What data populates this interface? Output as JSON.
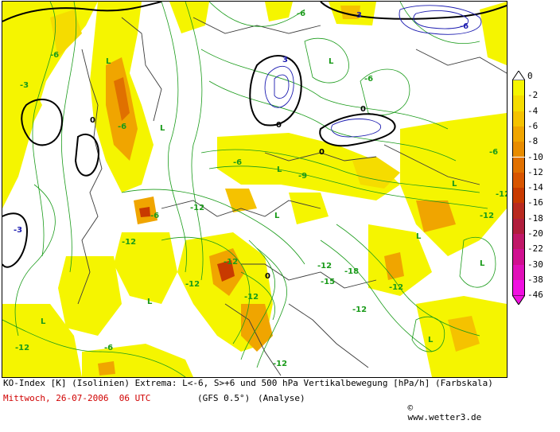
{
  "colors": {
    "contour_positive": "#1a9b1a",
    "contour_zero": "#000000",
    "contour_negative": "#1b1bb0",
    "coast": "#3a3a3a",
    "date_text": "#d00000"
  },
  "caption": {
    "line1": "KO-Index [K] (Isolinien) Extrema: L<-6, S>+6 und 500 hPa Vertikalbewegung [hPa/h] (Farbskala)",
    "date": "Mittwoch, 26-07-2006  06 UTC",
    "model": "(GFS 0.5°)",
    "run": "(Analyse)",
    "copyright": "www.wetter3.de"
  },
  "legend": {
    "top_label": "0",
    "levels": [
      {
        "label": "-2",
        "color": "#f5f500"
      },
      {
        "label": "-4",
        "color": "#f5dc00"
      },
      {
        "label": "-6",
        "color": "#f5c200"
      },
      {
        "label": "-8",
        "color": "#f0a500"
      },
      {
        "label": "-10",
        "color": "#e88c00"
      },
      {
        "label": "-12",
        "color": "#e07000"
      },
      {
        "label": "-14",
        "color": "#d85500"
      },
      {
        "label": "-16",
        "color": "#c83a00"
      },
      {
        "label": "-18",
        "color": "#b82a20"
      },
      {
        "label": "-20",
        "color": "#b01e3c"
      },
      {
        "label": "-22",
        "color": "#c01868"
      },
      {
        "label": "-30",
        "color": "#d01090"
      },
      {
        "label": "-38",
        "color": "#e010b8"
      },
      {
        "label": "-46",
        "color": "#f010e0"
      }
    ]
  },
  "map_labels": [
    {
      "text": "L",
      "color": "#1a9b1a"
    },
    {
      "text": "-6",
      "color": "#1a9b1a"
    },
    {
      "text": "-12",
      "color": "#1a9b1a"
    },
    {
      "text": "-3",
      "color": "#1a9b1a"
    },
    {
      "text": "0",
      "color": "#000000"
    },
    {
      "text": "-9",
      "color": "#1a9b1a"
    },
    {
      "text": "-6",
      "color": "#1b1bb0"
    },
    {
      "text": "3",
      "color": "#1b1bb0"
    },
    {
      "text": "-15",
      "color": "#1a9b1a"
    },
    {
      "text": "-18",
      "color": "#1a9b1a"
    }
  ]
}
